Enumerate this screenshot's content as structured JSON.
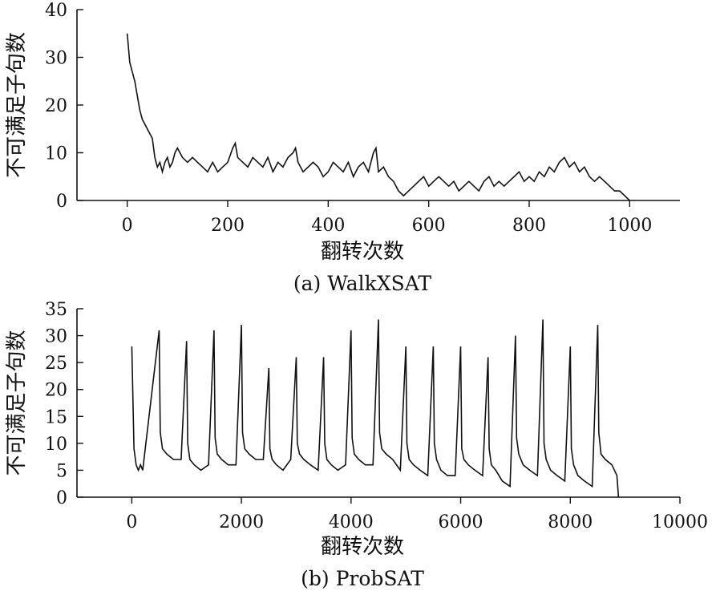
{
  "chart_data": [
    {
      "type": "line",
      "caption": "(a) WalkXSAT",
      "xlabel": "翻转次数",
      "ylabel": "不可满足子句数",
      "xlim": [
        -100,
        1100
      ],
      "ylim": [
        0,
        40
      ],
      "xticks": [
        0,
        200,
        400,
        600,
        800,
        1000
      ],
      "yticks": [
        0,
        10,
        20,
        30,
        40
      ],
      "grid": false,
      "legend": "none",
      "series": [
        {
          "x": [
            0,
            5,
            10,
            15,
            20,
            25,
            30,
            35,
            40,
            45,
            50,
            55,
            60,
            65,
            70,
            75,
            80,
            85,
            90,
            95,
            100,
            110,
            120,
            130,
            140,
            150,
            160,
            170,
            180,
            190,
            200,
            210,
            215,
            220,
            230,
            240,
            250,
            260,
            270,
            280,
            290,
            300,
            310,
            320,
            330,
            335,
            340,
            350,
            360,
            370,
            380,
            390,
            400,
            410,
            420,
            430,
            440,
            450,
            460,
            470,
            480,
            490,
            495,
            500,
            510,
            520,
            530,
            540,
            550,
            560,
            570,
            580,
            590,
            600,
            610,
            620,
            630,
            640,
            650,
            660,
            670,
            680,
            690,
            700,
            710,
            720,
            730,
            740,
            750,
            760,
            770,
            780,
            790,
            800,
            810,
            820,
            830,
            840,
            850,
            860,
            870,
            880,
            890,
            900,
            910,
            920,
            930,
            940,
            950,
            960,
            970,
            980,
            990,
            1000
          ],
          "y": [
            35,
            29,
            27,
            25,
            22,
            19,
            17,
            16,
            15,
            14,
            13,
            9,
            7,
            8,
            6,
            8,
            9,
            7,
            8,
            10,
            11,
            9,
            8,
            9,
            8,
            7,
            6,
            8,
            6,
            7,
            8,
            11,
            12,
            9,
            8,
            7,
            9,
            8,
            7,
            9,
            6,
            8,
            7,
            9,
            10,
            11,
            8,
            6,
            7,
            8,
            7,
            5,
            6,
            8,
            7,
            6,
            8,
            5,
            7,
            8,
            6,
            10,
            11,
            6,
            7,
            5,
            4,
            2,
            1,
            2,
            3,
            4,
            5,
            3,
            4,
            5,
            4,
            3,
            4,
            2,
            3,
            4,
            3,
            2,
            4,
            5,
            3,
            4,
            3,
            4,
            5,
            6,
            4,
            5,
            4,
            6,
            5,
            7,
            6,
            8,
            9,
            7,
            8,
            6,
            7,
            5,
            4,
            5,
            4,
            3,
            2,
            2,
            1,
            0
          ]
        }
      ]
    },
    {
      "type": "line",
      "caption": "(b) ProbSAT",
      "xlabel": "翻转次数",
      "ylabel": "不可满足子句数",
      "xlim": [
        -1000,
        10000
      ],
      "ylim": [
        0,
        35
      ],
      "xticks": [
        0,
        2000,
        4000,
        6000,
        8000,
        10000
      ],
      "yticks": [
        0,
        5,
        10,
        15,
        20,
        25,
        30,
        35
      ],
      "grid": false,
      "legend": "none",
      "series": [
        {
          "x": [
            0,
            40,
            80,
            120,
            160,
            200,
            500,
            520,
            560,
            640,
            760,
            900,
            1000,
            1020,
            1060,
            1140,
            1260,
            1400,
            1500,
            1520,
            1560,
            1640,
            1760,
            1900,
            2000,
            2020,
            2060,
            2140,
            2260,
            2400,
            2500,
            2520,
            2560,
            2640,
            2760,
            2900,
            3000,
            3020,
            3060,
            3140,
            3260,
            3400,
            3500,
            3520,
            3560,
            3640,
            3760,
            3900,
            4000,
            4020,
            4060,
            4140,
            4260,
            4400,
            4500,
            4520,
            4560,
            4640,
            4760,
            4900,
            5000,
            5020,
            5060,
            5140,
            5260,
            5400,
            5500,
            5520,
            5560,
            5640,
            5760,
            5900,
            6000,
            6020,
            6060,
            6140,
            6260,
            6400,
            6500,
            6520,
            6560,
            6640,
            6760,
            6900,
            7000,
            7020,
            7060,
            7140,
            7260,
            7400,
            7500,
            7520,
            7560,
            7640,
            7760,
            7900,
            8000,
            8020,
            8060,
            8140,
            8260,
            8400,
            8500,
            8520,
            8560,
            8640,
            8760,
            8850,
            8880
          ],
          "y": [
            28,
            9,
            6,
            5,
            6,
            5,
            31,
            12,
            9,
            8,
            7,
            7,
            29,
            10,
            7,
            6,
            5,
            6,
            31,
            11,
            8,
            7,
            6,
            6,
            32,
            12,
            9,
            8,
            7,
            7,
            24,
            9,
            7,
            6,
            5,
            7,
            26,
            10,
            8,
            7,
            6,
            5,
            26,
            10,
            7,
            6,
            5,
            6,
            31,
            11,
            8,
            7,
            6,
            6,
            33,
            12,
            9,
            8,
            7,
            5,
            28,
            10,
            7,
            6,
            5,
            4,
            28,
            10,
            7,
            5,
            4,
            4,
            28,
            9,
            7,
            6,
            5,
            4,
            26,
            9,
            6,
            5,
            3,
            2,
            30,
            11,
            8,
            6,
            5,
            4,
            33,
            10,
            7,
            5,
            4,
            3,
            28,
            9,
            6,
            4,
            3,
            2,
            32,
            12,
            8,
            7,
            6,
            4,
            0
          ]
        }
      ]
    }
  ]
}
